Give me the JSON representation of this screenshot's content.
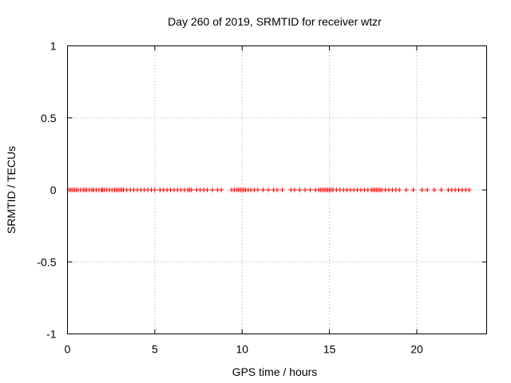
{
  "chart_data": {
    "type": "scatter",
    "title": "Day 260 of 2019, SRMTID for receiver wtzr",
    "xlabel": "GPS time / hours",
    "ylabel": "SRMTID / TECUs",
    "xlim": [
      0,
      24
    ],
    "ylim": [
      -1,
      1
    ],
    "x_ticks": [
      0,
      5,
      10,
      15,
      20
    ],
    "x_tick_labels": [
      "0",
      "5",
      "10",
      "15",
      "20"
    ],
    "y_ticks": [
      1,
      0.5,
      0,
      -0.5,
      -1
    ],
    "y_tick_labels": [
      "1",
      "0.5",
      "0",
      "-0.5",
      "-1"
    ],
    "grid": true,
    "marker": "plus",
    "series": [
      {
        "name": "SRMTID",
        "color": "#ff0000",
        "x": [
          0.1,
          0.2,
          0.3,
          0.4,
          0.5,
          0.6,
          0.75,
          0.9,
          1.0,
          1.1,
          1.25,
          1.4,
          1.5,
          1.65,
          1.8,
          1.95,
          2.0,
          2.1,
          2.25,
          2.4,
          2.55,
          2.7,
          2.8,
          2.9,
          3.0,
          3.1,
          3.2,
          3.4,
          3.6,
          3.8,
          4.0,
          4.2,
          4.4,
          4.6,
          4.8,
          5.0,
          5.3,
          5.5,
          5.7,
          5.9,
          6.1,
          6.3,
          6.5,
          6.7,
          6.9,
          7.0,
          7.1,
          7.4,
          7.6,
          7.8,
          8.0,
          8.3,
          8.6,
          8.8,
          9.4,
          9.55,
          9.7,
          9.8,
          9.9,
          10.0,
          10.1,
          10.2,
          10.35,
          10.5,
          10.7,
          10.9,
          11.2,
          11.5,
          11.8,
          12.0,
          12.3,
          12.8,
          13.0,
          13.3,
          13.6,
          13.9,
          14.2,
          14.4,
          14.5,
          14.6,
          14.7,
          14.8,
          14.9,
          15.0,
          15.1,
          15.2,
          15.4,
          15.6,
          15.8,
          16.0,
          16.2,
          16.4,
          16.6,
          16.8,
          17.0,
          17.2,
          17.4,
          17.5,
          17.6,
          17.7,
          17.8,
          17.9,
          18.0,
          18.2,
          18.4,
          18.6,
          18.8,
          19.0,
          19.4,
          19.8,
          20.3,
          20.6,
          21.0,
          21.4,
          21.8,
          22.0,
          22.2,
          22.4,
          22.6,
          22.8,
          23.0
        ],
        "y": [
          0,
          0,
          0,
          0,
          0,
          0,
          0,
          0,
          0,
          0,
          0,
          0,
          0,
          0,
          0,
          0,
          0,
          0,
          0,
          0,
          0,
          0,
          0,
          0,
          0,
          0,
          0,
          0,
          0,
          0,
          0,
          0,
          0,
          0,
          0,
          0,
          0,
          0,
          0,
          0,
          0,
          0,
          0,
          0,
          0,
          0,
          0,
          0,
          0,
          0,
          0,
          0,
          0,
          0,
          0,
          0,
          0,
          0,
          0,
          0,
          0,
          0,
          0,
          0,
          0,
          0,
          0,
          0,
          0,
          0,
          0,
          0,
          0,
          0,
          0,
          0,
          0,
          0,
          0,
          0,
          0,
          0,
          0,
          0,
          0,
          0,
          0,
          0,
          0,
          0,
          0,
          0,
          0,
          0,
          0,
          0,
          0,
          0,
          0,
          0,
          0,
          0,
          0,
          0,
          0,
          0,
          0,
          0,
          0,
          0,
          0,
          0,
          0,
          0,
          0,
          0,
          0,
          0,
          0,
          0,
          0
        ]
      }
    ]
  }
}
